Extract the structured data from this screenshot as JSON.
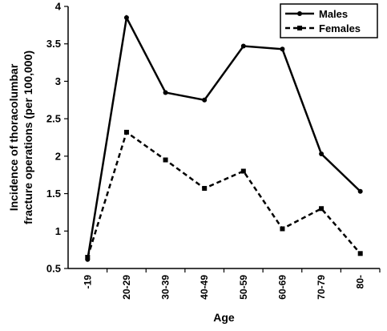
{
  "chart_data": {
    "type": "line",
    "categories": [
      "-19",
      "20-29",
      "30-39",
      "40-49",
      "50-59",
      "60-69",
      "70-79",
      "80-"
    ],
    "series": [
      {
        "name": "Males",
        "values": [
          0.62,
          3.85,
          2.85,
          2.75,
          3.47,
          3.43,
          2.03,
          1.53
        ],
        "style": "solid",
        "marker": "circle",
        "color": "#000000"
      },
      {
        "name": "Females",
        "values": [
          0.65,
          2.32,
          1.95,
          1.57,
          1.8,
          1.03,
          1.3,
          0.7
        ],
        "style": "dashed",
        "marker": "square",
        "color": "#000000"
      }
    ],
    "xlabel": "Age",
    "ylabel_line1": "Incidence of thoracolumbar",
    "ylabel_line2": "fracture operations (per 100,000)",
    "ylim": [
      0.5,
      4
    ],
    "yticks": [
      0.5,
      1,
      1.5,
      2,
      2.5,
      3,
      3.5,
      4
    ],
    "ytick_labels": [
      "0.5",
      "1",
      "1.5",
      "2",
      "2.5",
      "3",
      "3.5",
      "4"
    ],
    "legend_position": "top-right",
    "grid": false
  }
}
